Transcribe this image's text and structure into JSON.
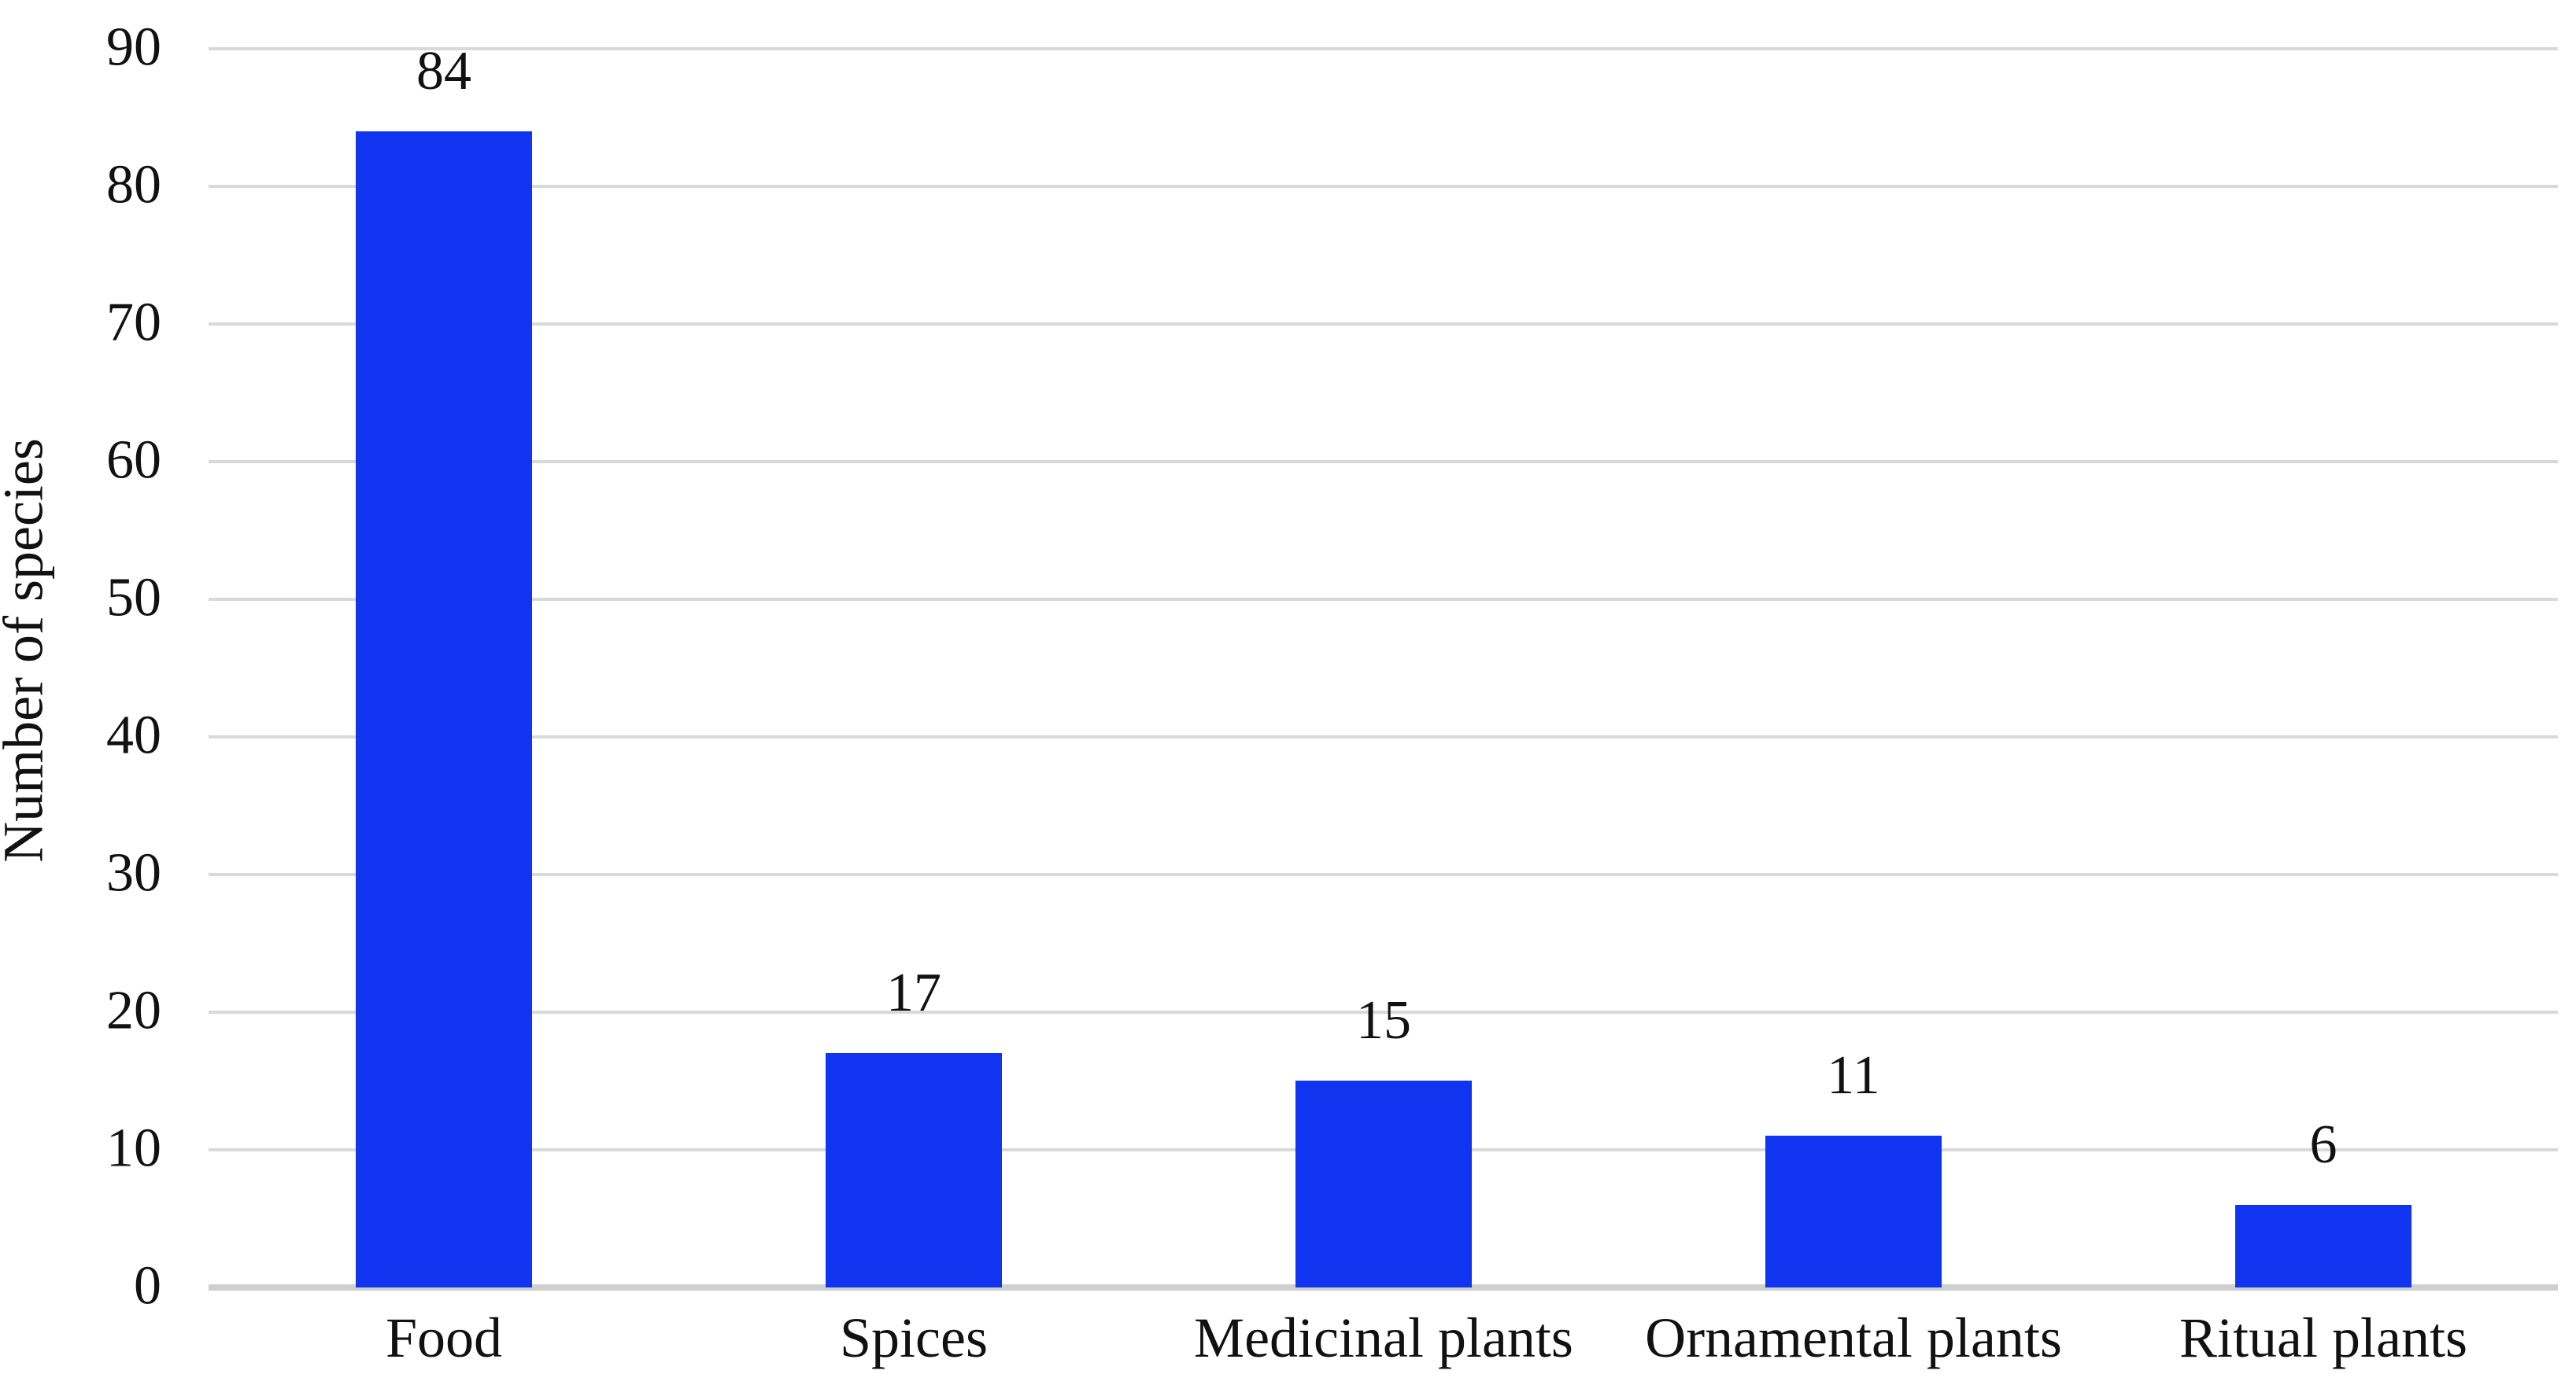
{
  "figure": {
    "background": "#ffffff",
    "text_color": "#111111"
  },
  "chart_data": {
    "type": "bar",
    "categories": [
      "Food",
      "Spices",
      "Medicinal plants",
      "Ornamental plants",
      "Ritual plants"
    ],
    "values": [
      84,
      17,
      15,
      11,
      6
    ],
    "title": "",
    "xlabel": "",
    "ylabel": "Number of species",
    "ylim": [
      0,
      90
    ],
    "yticks": [
      0,
      10,
      20,
      30,
      40,
      50,
      60,
      70,
      80,
      90
    ],
    "grid": true,
    "legend": "none",
    "bar_color": "#1134f0",
    "gridline_color": "#d9d9d9",
    "axis_line_color": "#cfcfcf"
  }
}
